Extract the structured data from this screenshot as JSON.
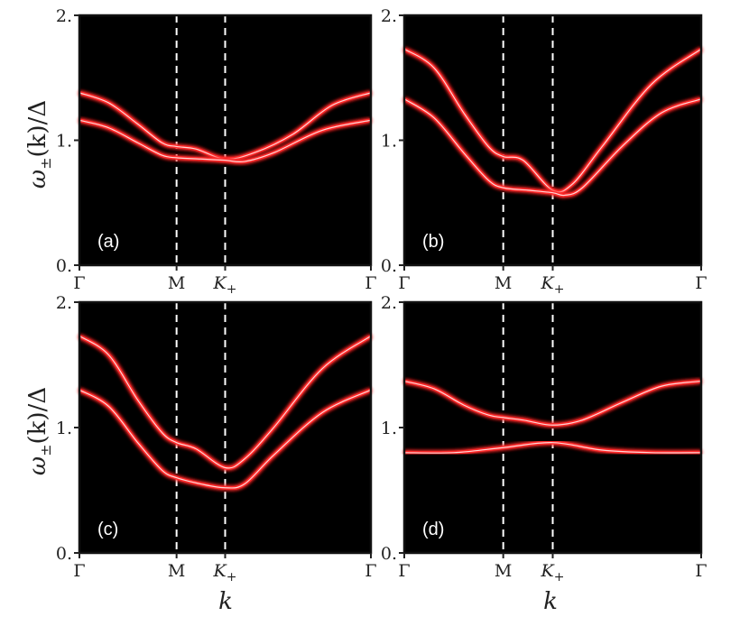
{
  "figure": {
    "xlabel": "k",
    "ylabel": "ω±(k)/Δ",
    "ylabel_parts": {
      "omega": "ω",
      "sub": "±",
      "arg": "(k)/Δ"
    }
  },
  "colors": {
    "background": "#000000",
    "band": "#ff2a2a",
    "band_core": "#ffd6d6",
    "divider": "#ffffff"
  },
  "chart_data": [
    {
      "type": "line",
      "panel_label": "(a)",
      "x_categories": [
        "Γ",
        "M",
        "K+",
        "Γ"
      ],
      "x_positions": [
        0,
        1,
        1.5,
        3
      ],
      "ylim": [
        0,
        2
      ],
      "yticks": [
        "0.",
        "1.",
        "2."
      ],
      "series": [
        {
          "values": [
            [
              0,
              1.38
            ],
            [
              0.3,
              1.3
            ],
            [
              0.6,
              1.13
            ],
            [
              0.85,
              0.98
            ],
            [
              1.0,
              0.95
            ],
            [
              1.2,
              0.93
            ],
            [
              1.5,
              0.85
            ],
            [
              1.8,
              0.9
            ],
            [
              2.2,
              1.05
            ],
            [
              2.6,
              1.28
            ],
            [
              3.0,
              1.38
            ]
          ]
        },
        {
          "values": [
            [
              0,
              1.16
            ],
            [
              0.3,
              1.1
            ],
            [
              0.6,
              0.98
            ],
            [
              0.85,
              0.88
            ],
            [
              1.0,
              0.86
            ],
            [
              1.25,
              0.85
            ],
            [
              1.5,
              0.84
            ],
            [
              1.7,
              0.83
            ],
            [
              2.0,
              0.9
            ],
            [
              2.5,
              1.08
            ],
            [
              3.0,
              1.16
            ]
          ]
        }
      ]
    },
    {
      "type": "line",
      "panel_label": "(b)",
      "x_categories": [
        "Γ",
        "M",
        "K+",
        "Γ"
      ],
      "x_positions": [
        0,
        1,
        1.5,
        3
      ],
      "ylim": [
        0,
        2
      ],
      "yticks": [
        "0.",
        "1.",
        "2."
      ],
      "series": [
        {
          "values": [
            [
              0,
              1.73
            ],
            [
              0.3,
              1.58
            ],
            [
              0.6,
              1.22
            ],
            [
              0.85,
              0.95
            ],
            [
              1.0,
              0.87
            ],
            [
              1.2,
              0.84
            ],
            [
              1.5,
              0.6
            ],
            [
              1.7,
              0.65
            ],
            [
              2.0,
              0.95
            ],
            [
              2.5,
              1.45
            ],
            [
              3.0,
              1.73
            ]
          ]
        },
        {
          "values": [
            [
              0,
              1.33
            ],
            [
              0.3,
              1.18
            ],
            [
              0.6,
              0.9
            ],
            [
              0.85,
              0.68
            ],
            [
              1.0,
              0.62
            ],
            [
              1.25,
              0.6
            ],
            [
              1.5,
              0.58
            ],
            [
              1.62,
              0.56
            ],
            [
              1.8,
              0.62
            ],
            [
              2.2,
              0.95
            ],
            [
              2.6,
              1.22
            ],
            [
              3.0,
              1.33
            ]
          ]
        }
      ]
    },
    {
      "type": "line",
      "panel_label": "(c)",
      "x_categories": [
        "Γ",
        "M",
        "K+",
        "Γ"
      ],
      "x_positions": [
        0,
        1,
        1.5,
        3
      ],
      "ylim": [
        0,
        2
      ],
      "yticks": [
        "0.",
        "1.",
        "2."
      ],
      "series": [
        {
          "values": [
            [
              0,
              1.73
            ],
            [
              0.3,
              1.58
            ],
            [
              0.6,
              1.22
            ],
            [
              0.85,
              0.96
            ],
            [
              1.0,
              0.88
            ],
            [
              1.2,
              0.83
            ],
            [
              1.5,
              0.68
            ],
            [
              1.7,
              0.75
            ],
            [
              2.0,
              1.0
            ],
            [
              2.5,
              1.47
            ],
            [
              3.0,
              1.73
            ]
          ]
        },
        {
          "values": [
            [
              0,
              1.3
            ],
            [
              0.3,
              1.17
            ],
            [
              0.6,
              0.88
            ],
            [
              0.85,
              0.66
            ],
            [
              1.0,
              0.6
            ],
            [
              1.25,
              0.55
            ],
            [
              1.5,
              0.52
            ],
            [
              1.7,
              0.55
            ],
            [
              2.0,
              0.78
            ],
            [
              2.5,
              1.12
            ],
            [
              3.0,
              1.3
            ]
          ]
        }
      ]
    },
    {
      "type": "line",
      "panel_label": "(d)",
      "x_categories": [
        "Γ",
        "M",
        "K+",
        "Γ"
      ],
      "x_positions": [
        0,
        1,
        1.5,
        3
      ],
      "ylim": [
        0,
        2
      ],
      "yticks": [
        "0.",
        "1.",
        "2."
      ],
      "series": [
        {
          "values": [
            [
              0,
              1.37
            ],
            [
              0.3,
              1.31
            ],
            [
              0.6,
              1.18
            ],
            [
              0.85,
              1.1
            ],
            [
              1.0,
              1.08
            ],
            [
              1.2,
              1.06
            ],
            [
              1.5,
              1.02
            ],
            [
              1.8,
              1.06
            ],
            [
              2.2,
              1.2
            ],
            [
              2.6,
              1.33
            ],
            [
              3.0,
              1.37
            ]
          ]
        },
        {
          "values": [
            [
              0,
              0.8
            ],
            [
              0.5,
              0.8
            ],
            [
              1.0,
              0.84
            ],
            [
              1.5,
              0.88
            ],
            [
              2.0,
              0.82
            ],
            [
              2.5,
              0.8
            ],
            [
              3.0,
              0.8
            ]
          ]
        }
      ]
    }
  ]
}
